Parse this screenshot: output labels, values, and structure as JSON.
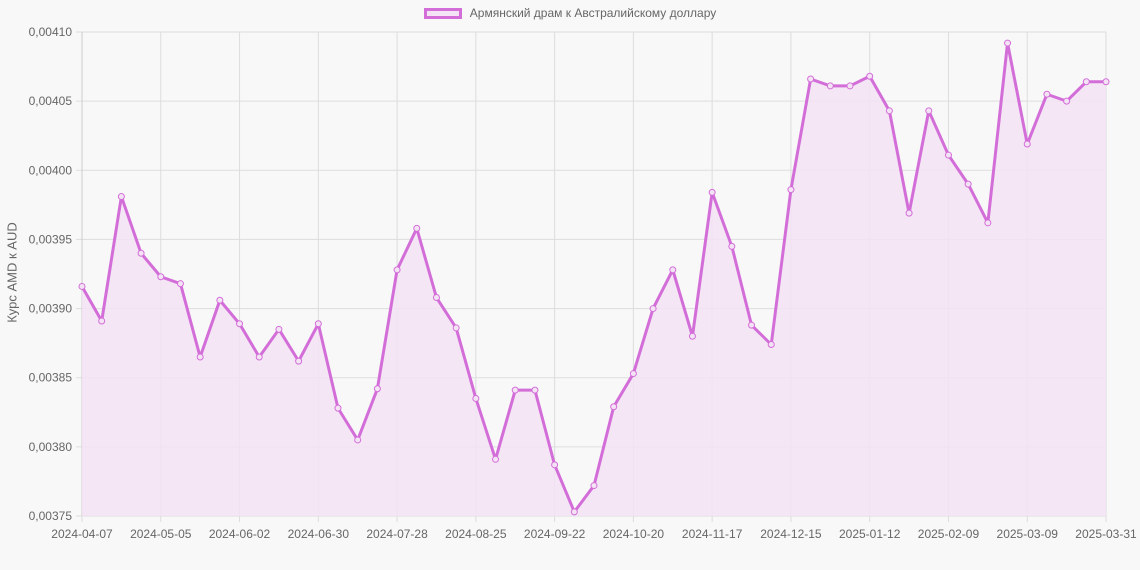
{
  "chart_data": {
    "type": "line",
    "title": "",
    "legend": [
      "Армянский драм к Австралийскому доллару"
    ],
    "legend_position": "top",
    "xlabel": "",
    "ylabel": "Курс AMD к AUD",
    "ylim": [
      0.00375,
      0.0041
    ],
    "grid": true,
    "colors": {
      "line": "#d36ed9",
      "fill": "#f3e3f4",
      "grid": "#dddddd"
    },
    "y_ticks": [
      "0,00410",
      "0,00405",
      "0,00400",
      "0,00395",
      "0,00390",
      "0,00385",
      "0,00380",
      "0,00375"
    ],
    "x_ticks": [
      "2024-04-07",
      "2024-05-05",
      "2024-06-02",
      "2024-06-30",
      "2024-07-28",
      "2024-08-25",
      "2024-09-22",
      "2024-10-20",
      "2024-11-17",
      "2024-12-15",
      "2025-01-12",
      "2025-02-09",
      "2025-03-09",
      "2025-03-31"
    ],
    "series": [
      {
        "name": "Армянский драм к Австралийскому доллару",
        "values": [
          0.003916,
          0.003891,
          0.003981,
          0.00394,
          0.003923,
          0.003918,
          0.003865,
          0.003906,
          0.003889,
          0.003865,
          0.003885,
          0.003862,
          0.003889,
          0.003828,
          0.003805,
          0.003842,
          0.003928,
          0.003958,
          0.003908,
          0.003886,
          0.003835,
          0.003791,
          0.003841,
          0.003841,
          0.003787,
          0.003753,
          0.003772,
          0.003829,
          0.003853,
          0.0039,
          0.003928,
          0.00388,
          0.003984,
          0.003945,
          0.003888,
          0.003874,
          0.003986,
          0.004066,
          0.004061,
          0.004061,
          0.004068,
          0.004043,
          0.003969,
          0.004043,
          0.004011,
          0.00399,
          0.003962,
          0.004092,
          0.004019,
          0.004055,
          0.00405,
          0.004064,
          0.004064
        ]
      }
    ]
  }
}
